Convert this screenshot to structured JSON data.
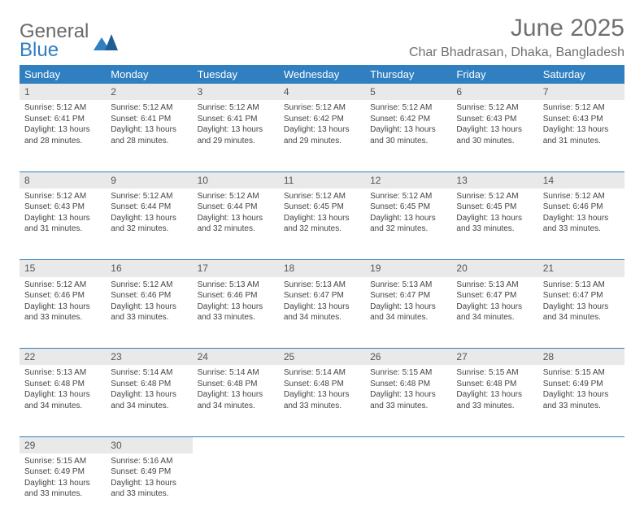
{
  "brand": {
    "line1": "General",
    "line2": "Blue"
  },
  "title": "June 2025",
  "location": "Char Bhadrasan, Dhaka, Bangladesh",
  "colors": {
    "accent": "#2f7fc1",
    "header_text": "#ffffff",
    "daybar": "#e9e9e9",
    "text": "#444444",
    "muted": "#707070"
  },
  "weekdays": [
    "Sunday",
    "Monday",
    "Tuesday",
    "Wednesday",
    "Thursday",
    "Friday",
    "Saturday"
  ],
  "weeks": [
    [
      {
        "n": "1",
        "sr": "Sunrise: 5:12 AM",
        "ss": "Sunset: 6:41 PM",
        "d1": "Daylight: 13 hours",
        "d2": "and 28 minutes."
      },
      {
        "n": "2",
        "sr": "Sunrise: 5:12 AM",
        "ss": "Sunset: 6:41 PM",
        "d1": "Daylight: 13 hours",
        "d2": "and 28 minutes."
      },
      {
        "n": "3",
        "sr": "Sunrise: 5:12 AM",
        "ss": "Sunset: 6:41 PM",
        "d1": "Daylight: 13 hours",
        "d2": "and 29 minutes."
      },
      {
        "n": "4",
        "sr": "Sunrise: 5:12 AM",
        "ss": "Sunset: 6:42 PM",
        "d1": "Daylight: 13 hours",
        "d2": "and 29 minutes."
      },
      {
        "n": "5",
        "sr": "Sunrise: 5:12 AM",
        "ss": "Sunset: 6:42 PM",
        "d1": "Daylight: 13 hours",
        "d2": "and 30 minutes."
      },
      {
        "n": "6",
        "sr": "Sunrise: 5:12 AM",
        "ss": "Sunset: 6:43 PM",
        "d1": "Daylight: 13 hours",
        "d2": "and 30 minutes."
      },
      {
        "n": "7",
        "sr": "Sunrise: 5:12 AM",
        "ss": "Sunset: 6:43 PM",
        "d1": "Daylight: 13 hours",
        "d2": "and 31 minutes."
      }
    ],
    [
      {
        "n": "8",
        "sr": "Sunrise: 5:12 AM",
        "ss": "Sunset: 6:43 PM",
        "d1": "Daylight: 13 hours",
        "d2": "and 31 minutes."
      },
      {
        "n": "9",
        "sr": "Sunrise: 5:12 AM",
        "ss": "Sunset: 6:44 PM",
        "d1": "Daylight: 13 hours",
        "d2": "and 32 minutes."
      },
      {
        "n": "10",
        "sr": "Sunrise: 5:12 AM",
        "ss": "Sunset: 6:44 PM",
        "d1": "Daylight: 13 hours",
        "d2": "and 32 minutes."
      },
      {
        "n": "11",
        "sr": "Sunrise: 5:12 AM",
        "ss": "Sunset: 6:45 PM",
        "d1": "Daylight: 13 hours",
        "d2": "and 32 minutes."
      },
      {
        "n": "12",
        "sr": "Sunrise: 5:12 AM",
        "ss": "Sunset: 6:45 PM",
        "d1": "Daylight: 13 hours",
        "d2": "and 32 minutes."
      },
      {
        "n": "13",
        "sr": "Sunrise: 5:12 AM",
        "ss": "Sunset: 6:45 PM",
        "d1": "Daylight: 13 hours",
        "d2": "and 33 minutes."
      },
      {
        "n": "14",
        "sr": "Sunrise: 5:12 AM",
        "ss": "Sunset: 6:46 PM",
        "d1": "Daylight: 13 hours",
        "d2": "and 33 minutes."
      }
    ],
    [
      {
        "n": "15",
        "sr": "Sunrise: 5:12 AM",
        "ss": "Sunset: 6:46 PM",
        "d1": "Daylight: 13 hours",
        "d2": "and 33 minutes."
      },
      {
        "n": "16",
        "sr": "Sunrise: 5:12 AM",
        "ss": "Sunset: 6:46 PM",
        "d1": "Daylight: 13 hours",
        "d2": "and 33 minutes."
      },
      {
        "n": "17",
        "sr": "Sunrise: 5:13 AM",
        "ss": "Sunset: 6:46 PM",
        "d1": "Daylight: 13 hours",
        "d2": "and 33 minutes."
      },
      {
        "n": "18",
        "sr": "Sunrise: 5:13 AM",
        "ss": "Sunset: 6:47 PM",
        "d1": "Daylight: 13 hours",
        "d2": "and 34 minutes."
      },
      {
        "n": "19",
        "sr": "Sunrise: 5:13 AM",
        "ss": "Sunset: 6:47 PM",
        "d1": "Daylight: 13 hours",
        "d2": "and 34 minutes."
      },
      {
        "n": "20",
        "sr": "Sunrise: 5:13 AM",
        "ss": "Sunset: 6:47 PM",
        "d1": "Daylight: 13 hours",
        "d2": "and 34 minutes."
      },
      {
        "n": "21",
        "sr": "Sunrise: 5:13 AM",
        "ss": "Sunset: 6:47 PM",
        "d1": "Daylight: 13 hours",
        "d2": "and 34 minutes."
      }
    ],
    [
      {
        "n": "22",
        "sr": "Sunrise: 5:13 AM",
        "ss": "Sunset: 6:48 PM",
        "d1": "Daylight: 13 hours",
        "d2": "and 34 minutes."
      },
      {
        "n": "23",
        "sr": "Sunrise: 5:14 AM",
        "ss": "Sunset: 6:48 PM",
        "d1": "Daylight: 13 hours",
        "d2": "and 34 minutes."
      },
      {
        "n": "24",
        "sr": "Sunrise: 5:14 AM",
        "ss": "Sunset: 6:48 PM",
        "d1": "Daylight: 13 hours",
        "d2": "and 34 minutes."
      },
      {
        "n": "25",
        "sr": "Sunrise: 5:14 AM",
        "ss": "Sunset: 6:48 PM",
        "d1": "Daylight: 13 hours",
        "d2": "and 33 minutes."
      },
      {
        "n": "26",
        "sr": "Sunrise: 5:15 AM",
        "ss": "Sunset: 6:48 PM",
        "d1": "Daylight: 13 hours",
        "d2": "and 33 minutes."
      },
      {
        "n": "27",
        "sr": "Sunrise: 5:15 AM",
        "ss": "Sunset: 6:48 PM",
        "d1": "Daylight: 13 hours",
        "d2": "and 33 minutes."
      },
      {
        "n": "28",
        "sr": "Sunrise: 5:15 AM",
        "ss": "Sunset: 6:49 PM",
        "d1": "Daylight: 13 hours",
        "d2": "and 33 minutes."
      }
    ],
    [
      {
        "n": "29",
        "sr": "Sunrise: 5:15 AM",
        "ss": "Sunset: 6:49 PM",
        "d1": "Daylight: 13 hours",
        "d2": "and 33 minutes."
      },
      {
        "n": "30",
        "sr": "Sunrise: 5:16 AM",
        "ss": "Sunset: 6:49 PM",
        "d1": "Daylight: 13 hours",
        "d2": "and 33 minutes."
      },
      null,
      null,
      null,
      null,
      null
    ]
  ]
}
